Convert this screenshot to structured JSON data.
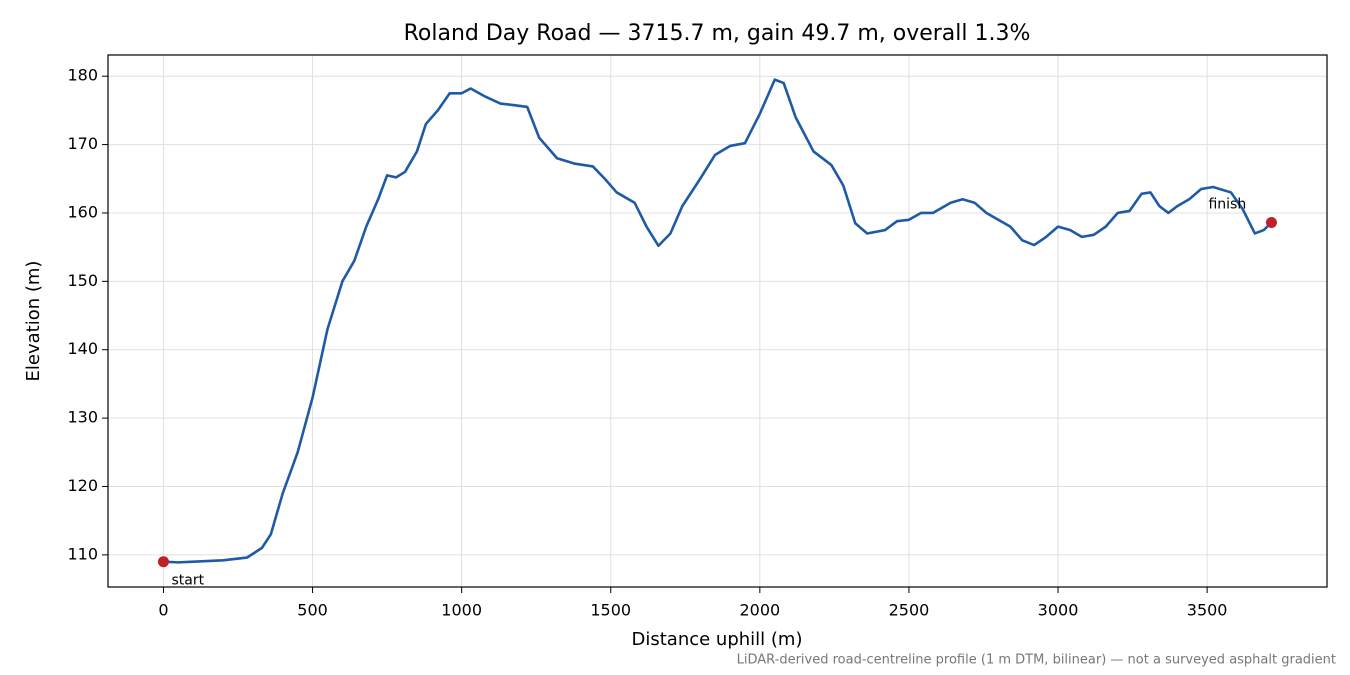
{
  "chart_data": {
    "type": "line",
    "title": "Roland Day Road — 3715.7 m, gain 49.7 m, overall 1.3%",
    "xlabel": "Distance uphill (m)",
    "ylabel": "Elevation (m)",
    "footnote": "LiDAR-derived road-centreline profile (1 m DTM, bilinear) — not a surveyed asphalt gradient",
    "color": "#1f5aa6",
    "x": [
      0,
      50,
      100,
      200,
      280,
      330,
      360,
      400,
      450,
      500,
      550,
      600,
      640,
      680,
      720,
      750,
      780,
      810,
      850,
      880,
      920,
      960,
      1000,
      1030,
      1080,
      1130,
      1170,
      1220,
      1260,
      1320,
      1380,
      1440,
      1480,
      1520,
      1580,
      1620,
      1660,
      1700,
      1740,
      1800,
      1850,
      1900,
      1950,
      2000,
      2050,
      2080,
      2120,
      2180,
      2240,
      2280,
      2320,
      2360,
      2420,
      2460,
      2500,
      2540,
      2580,
      2640,
      2680,
      2720,
      2760,
      2840,
      2880,
      2920,
      2960,
      3000,
      3040,
      3080,
      3120,
      3160,
      3200,
      3240,
      3280,
      3310,
      3340,
      3370,
      3400,
      3440,
      3480,
      3520,
      3580,
      3620,
      3660,
      3690,
      3715.7
    ],
    "values": [
      109,
      108.9,
      109,
      109.2,
      109.6,
      111,
      113,
      119,
      125,
      133,
      143,
      150,
      153,
      158,
      162,
      165.5,
      165.2,
      166,
      169,
      173,
      175,
      177.5,
      177.5,
      178.2,
      177,
      176,
      175.8,
      175.5,
      171,
      168,
      167.2,
      166.8,
      165,
      163,
      161.5,
      158,
      155.2,
      157,
      161,
      165,
      168.5,
      169.8,
      170.2,
      174.5,
      179.5,
      179,
      174,
      169,
      167,
      164,
      158.5,
      157,
      157.5,
      158.8,
      159,
      160,
      160,
      161.5,
      162,
      161.5,
      160,
      158,
      156,
      155.3,
      156.5,
      158,
      157.5,
      156.5,
      156.8,
      158,
      160,
      160.3,
      162.8,
      163,
      161,
      160,
      161,
      162,
      163.5,
      163.8,
      163,
      160.5,
      157,
      157.5,
      158.6
    ],
    "markers": [
      {
        "x": 0,
        "y": 109,
        "label": "start"
      },
      {
        "x": 3715.7,
        "y": 158.6,
        "label": "finish"
      }
    ],
    "marker_color": "#c0202a",
    "xlim": [
      -186,
      3902
    ],
    "ylim": [
      105.3,
      183.1
    ],
    "xticks": [
      0,
      500,
      1000,
      1500,
      2000,
      2500,
      3000,
      3500
    ],
    "yticks": [
      110,
      120,
      130,
      140,
      150,
      160,
      170,
      180
    ],
    "grid": true
  }
}
